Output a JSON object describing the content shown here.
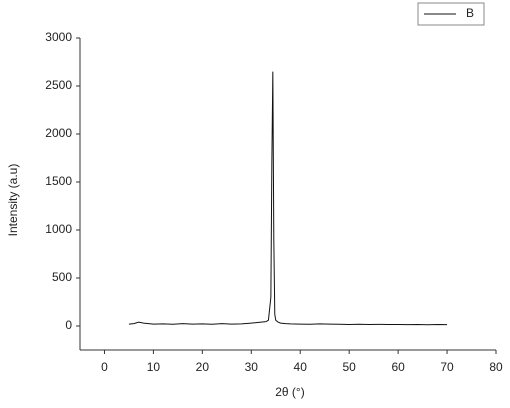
{
  "chart_data": {
    "type": "line",
    "x_label": "2θ (°)",
    "y_label": "Intensity (a.u)",
    "x": [
      5,
      6,
      7,
      8,
      9,
      10,
      12,
      14,
      16,
      18,
      20,
      22,
      24,
      26,
      28,
      30,
      31,
      32,
      33,
      33.5,
      34,
      34.2,
      34.4,
      34.6,
      34.8,
      35,
      35.5,
      36,
      37,
      38,
      40,
      42,
      44,
      46,
      48,
      50,
      52,
      54,
      56,
      58,
      60,
      62,
      64,
      66,
      68,
      70
    ],
    "series": [
      {
        "name": "B",
        "color": "#111111",
        "values": [
          20,
          25,
          40,
          30,
          25,
          20,
          22,
          18,
          25,
          20,
          22,
          18,
          25,
          20,
          22,
          30,
          35,
          40,
          45,
          60,
          300,
          1700,
          2650,
          900,
          120,
          60,
          40,
          30,
          25,
          22,
          20,
          18,
          22,
          20,
          18,
          16,
          18,
          15,
          17,
          15,
          16,
          14,
          15,
          13,
          15,
          14
        ]
      }
    ],
    "xlim": [
      -5,
      80
    ],
    "xticks": [
      0,
      10,
      20,
      30,
      40,
      50,
      60,
      70,
      80
    ],
    "ylim": [
      -250,
      3000
    ],
    "yticks": [
      0,
      500,
      1000,
      1500,
      2000,
      2500,
      3000
    ],
    "legend": "top-right"
  }
}
